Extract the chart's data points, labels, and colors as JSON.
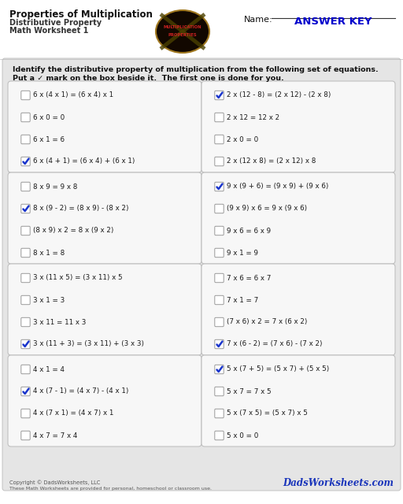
{
  "title": "Properties of Multiplication",
  "subtitle1": "Distributive Property",
  "subtitle2": "Math Worksheet 1",
  "name_label": "Name:",
  "answer_key": "ANSWER KEY",
  "instructions_line1": "Identify the distributive property of multiplication from the following set of equations.",
  "instructions_line2": "Put a ✓ mark on the box beside it.  The first one is done for you.",
  "boxes": [
    {
      "items": [
        {
          "text": "6 x (4 x 1) = (6 x 4) x 1",
          "checked": false
        },
        {
          "text": "6 x 0 = 0",
          "checked": false
        },
        {
          "text": "6 x 1 = 6",
          "checked": false
        },
        {
          "text": "6 x (4 + 1) = (6 x 4) + (6 x 1)",
          "checked": true
        }
      ]
    },
    {
      "items": [
        {
          "text": "2 x (12 - 8) = (2 x 12) - (2 x 8)",
          "checked": true
        },
        {
          "text": "2 x 12 = 12 x 2",
          "checked": false
        },
        {
          "text": "2 x 0 = 0",
          "checked": false
        },
        {
          "text": "2 x (12 x 8) = (2 x 12) x 8",
          "checked": false
        }
      ]
    },
    {
      "items": [
        {
          "text": "8 x 9 = 9 x 8",
          "checked": false
        },
        {
          "text": "8 x (9 - 2) = (8 x 9) - (8 x 2)",
          "checked": true
        },
        {
          "text": "(8 x 9) x 2 = 8 x (9 x 2)",
          "checked": false
        },
        {
          "text": "8 x 1 = 8",
          "checked": false
        }
      ]
    },
    {
      "items": [
        {
          "text": "9 x (9 + 6) = (9 x 9) + (9 x 6)",
          "checked": true
        },
        {
          "text": "(9 x 9) x 6 = 9 x (9 x 6)",
          "checked": false
        },
        {
          "text": "9 x 6 = 6 x 9",
          "checked": false
        },
        {
          "text": "9 x 1 = 9",
          "checked": false
        }
      ]
    },
    {
      "items": [
        {
          "text": "3 x (11 x 5) = (3 x 11) x 5",
          "checked": false
        },
        {
          "text": "3 x 1 = 3",
          "checked": false
        },
        {
          "text": "3 x 11 = 11 x 3",
          "checked": false
        },
        {
          "text": "3 x (11 + 3) = (3 x 11) + (3 x 3)",
          "checked": true
        }
      ]
    },
    {
      "items": [
        {
          "text": "7 x 6 = 6 x 7",
          "checked": false
        },
        {
          "text": "7 x 1 = 7",
          "checked": false
        },
        {
          "text": "(7 x 6) x 2 = 7 x (6 x 2)",
          "checked": false
        },
        {
          "text": "7 x (6 - 2) = (7 x 6) - (7 x 2)",
          "checked": true
        }
      ]
    },
    {
      "items": [
        {
          "text": "4 x 1 = 4",
          "checked": false
        },
        {
          "text": "4 x (7 - 1) = (4 x 7) - (4 x 1)",
          "checked": true
        },
        {
          "text": "4 x (7 x 1) = (4 x 7) x 1",
          "checked": false
        },
        {
          "text": "4 x 7 = 7 x 4",
          "checked": false
        }
      ]
    },
    {
      "items": [
        {
          "text": "5 x (7 + 5) = (5 x 7) + (5 x 5)",
          "checked": true
        },
        {
          "text": "5 x 7 = 7 x 5",
          "checked": false
        },
        {
          "text": "5 x (7 x 5) = (5 x 7) x 5",
          "checked": false
        },
        {
          "text": "5 x 0 = 0",
          "checked": false
        }
      ]
    }
  ],
  "copyright_line1": "Copyright © DadsWorksheets, LLC",
  "copyright_line2": "These Math Worksheets are provided for personal, homeschool or classroom use.",
  "watermark": "DadsWorksheets.com",
  "check_color": "#1a35cc",
  "header_bg": "#ffffff",
  "main_bg": "#e5e5e5",
  "box_bg": "#f7f7f7",
  "box_border": "#c0c0c0",
  "answer_key_color": "#0000cc"
}
